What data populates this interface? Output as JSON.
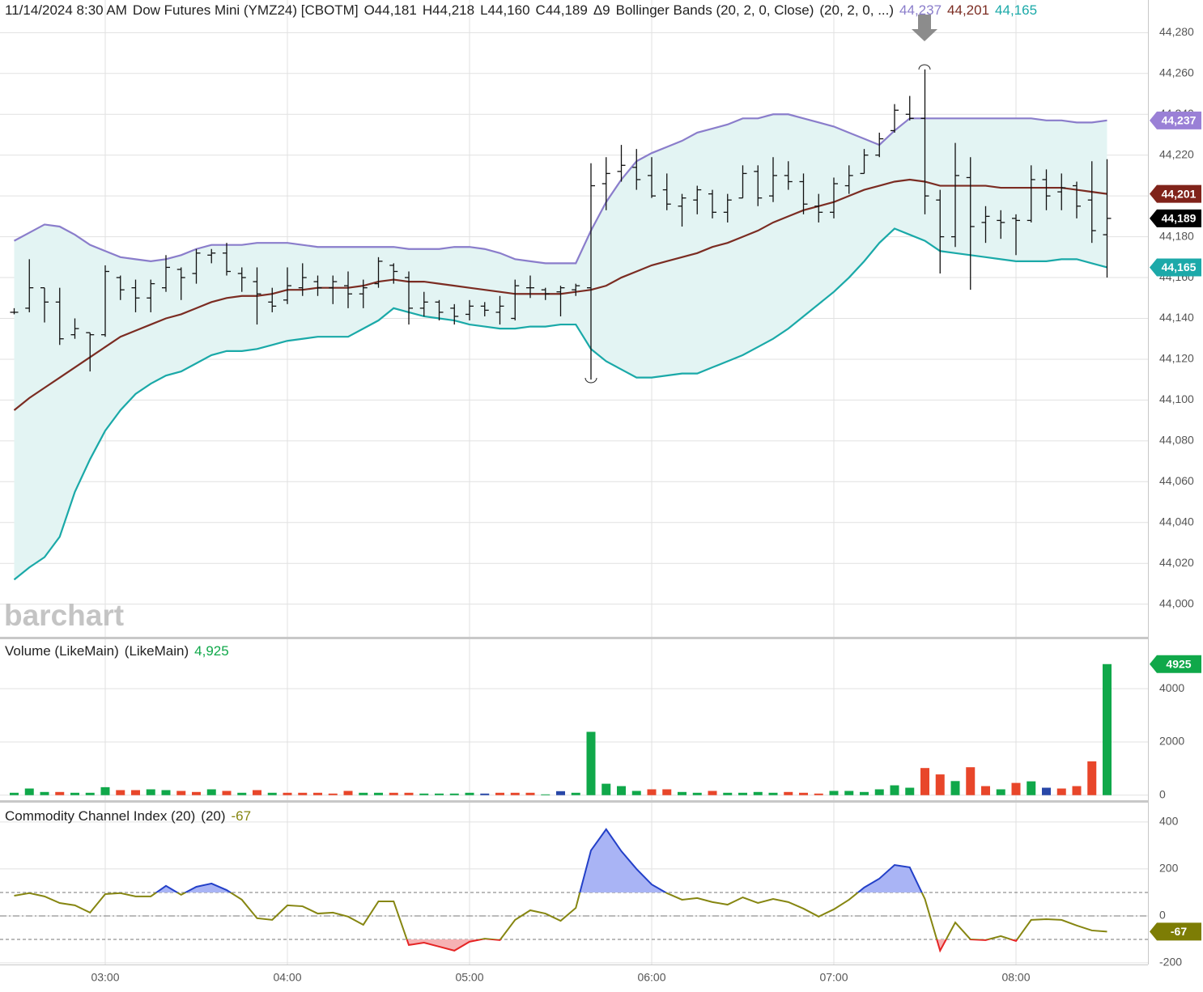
{
  "chart_data": [
    {
      "type": "ohlc",
      "header": {
        "datetime": "11/14/2024 8:30 AM",
        "symbol": "Dow Futures Mini (YMZ24) [CBOTM]",
        "open": "O44,181",
        "high": "H44,218",
        "low": "L44,160",
        "close": "C44,189",
        "change": "Δ9",
        "study": "Bollinger Bands (20, 2, 0, Close)",
        "params": "(20, 2, 0, ...)"
      },
      "watermark": "barchart",
      "categories": [
        null,
        null,
        null,
        null,
        null,
        null,
        "03:00",
        null,
        null,
        null,
        null,
        null,
        null,
        null,
        null,
        null,
        null,
        null,
        "04:00",
        null,
        null,
        null,
        null,
        null,
        null,
        null,
        null,
        null,
        null,
        null,
        "05:00",
        null,
        null,
        null,
        null,
        null,
        null,
        null,
        null,
        null,
        null,
        null,
        "06:00",
        null,
        null,
        null,
        null,
        null,
        null,
        null,
        null,
        null,
        null,
        null,
        "07:00",
        null,
        null,
        null,
        null,
        null,
        null,
        null,
        null,
        null,
        null,
        null,
        "08:00",
        null,
        null,
        null,
        null,
        null,
        null
      ],
      "open": [
        44143,
        44145,
        44155,
        44148,
        44132,
        44133,
        44132,
        44160,
        44155,
        44150,
        44155,
        44164,
        44162,
        44171,
        44172,
        44162,
        44158,
        44148,
        44149,
        44155,
        44158,
        44155,
        44156,
        44152,
        44157,
        44166,
        44160,
        44145,
        44148,
        44145,
        44142,
        44146,
        44143,
        44140,
        44155,
        44154,
        44153,
        44154,
        44155,
        44206,
        44212,
        44214,
        44210,
        44203,
        44195,
        44198,
        44201,
        44192,
        44199,
        44212,
        44200,
        44210,
        44207,
        44195,
        44192,
        44205,
        44211,
        44220,
        44232,
        44240,
        44238,
        44198,
        44180,
        44209,
        44187,
        44188,
        44189,
        44188,
        44208,
        44202,
        44205,
        44198,
        44181
      ],
      "high": [
        44145,
        44169,
        44155,
        44155,
        44140,
        44133,
        44166,
        44161,
        44159,
        44159,
        44171,
        44165,
        44174,
        44174,
        44177,
        44165,
        44165,
        44155,
        44165,
        44167,
        44161,
        44161,
        44163,
        44159,
        44170,
        44167,
        44163,
        44153,
        44149,
        44147,
        44149,
        44148,
        44151,
        44159,
        44161,
        44155,
        44156,
        44157,
        44216,
        44219,
        44225,
        44223,
        44219,
        44211,
        44201,
        44205,
        44203,
        44201,
        44215,
        44215,
        44219,
        44217,
        44211,
        44201,
        44209,
        44215,
        44223,
        44231,
        44245,
        44249,
        44262,
        44203,
        44226,
        44219,
        44195,
        44193,
        44191,
        44215,
        44213,
        44211,
        44207,
        44217,
        44218
      ],
      "low": [
        44142,
        44143,
        44138,
        44127,
        44130,
        44114,
        44131,
        44149,
        44143,
        44143,
        44153,
        44149,
        44157,
        44167,
        44161,
        44153,
        44137,
        44143,
        44147,
        44151,
        44151,
        44147,
        44145,
        44145,
        44155,
        44157,
        44137,
        44141,
        44139,
        44137,
        44139,
        44141,
        44137,
        44139,
        44150,
        44149,
        44141,
        44151,
        44110,
        44193,
        44207,
        44203,
        44199,
        44193,
        44185,
        44191,
        44189,
        44187,
        44199,
        44195,
        44197,
        44203,
        44191,
        44187,
        44189,
        44201,
        44211,
        44219,
        44231,
        44237,
        44191,
        44162,
        44175,
        44154,
        44177,
        44179,
        44171,
        44187,
        44193,
        44193,
        44189,
        44177,
        44160
      ],
      "close": [
        44143,
        44155,
        44148,
        44130,
        44135,
        44132,
        44163,
        44154,
        44150,
        44157,
        44165,
        44160,
        44172,
        44172,
        44163,
        44160,
        44152,
        44146,
        44156,
        44160,
        44155,
        44158,
        44152,
        44155,
        44168,
        44163,
        44145,
        44148,
        44143,
        44141,
        44146,
        44144,
        44146,
        44156,
        44155,
        44152,
        44155,
        44156,
        44205,
        44211,
        44215,
        44208,
        44200,
        44196,
        44199,
        44203,
        44192,
        44198,
        44211,
        44199,
        44210,
        44207,
        44196,
        44192,
        44206,
        44210,
        44220,
        44228,
        44242,
        44238,
        44200,
        44180,
        44210,
        44185,
        44190,
        44187,
        44188,
        44208,
        44200,
        44204,
        44195,
        44183,
        44189
      ],
      "color": "#111111",
      "close_label": "44,189",
      "close_badge_color": "#000000",
      "band_fill": "#e3f4f3",
      "overlays": [
        {
          "label": "44,237",
          "color": "#8a7dcb",
          "badge_color": "#9a80d6",
          "values": [
            44178,
            44182,
            44186,
            44185,
            44181,
            44176,
            44173,
            44170,
            44169,
            44168,
            44169,
            44171,
            44174,
            44176,
            44176,
            44176,
            44177,
            44177,
            44177,
            44176,
            44175,
            44175,
            44175,
            44175,
            44175,
            44175,
            44174,
            44174,
            44174,
            44175,
            44175,
            44174,
            44172,
            44169,
            44168,
            44167,
            44167,
            44167,
            44183,
            44197,
            44208,
            44217,
            44221,
            44224,
            44227,
            44231,
            44233,
            44235,
            44238,
            44238,
            44240,
            44240,
            44238,
            44236,
            44234,
            44231,
            44228,
            44225,
            44232,
            44238,
            44238,
            44238,
            44238,
            44238,
            44238,
            44238,
            44238,
            44238,
            44237,
            44237,
            44236,
            44236,
            44237
          ]
        },
        {
          "label": "44,201",
          "color": "#7b2c22",
          "badge_color": "#80231a",
          "values": [
            44095,
            44101,
            44106,
            44111,
            44116,
            44121,
            44126,
            44131,
            44134,
            44137,
            44140,
            44142,
            44145,
            44148,
            44150,
            44151,
            44151,
            44152,
            44154,
            44154,
            44155,
            44155,
            44155,
            44156,
            44158,
            44159,
            44158,
            44158,
            44157,
            44156,
            44155,
            44154,
            44153,
            44152,
            44152,
            44152,
            44152,
            44153,
            44154,
            44156,
            44160,
            44163,
            44166,
            44168,
            44170,
            44172,
            44175,
            44177,
            44180,
            44183,
            44187,
            44190,
            44193,
            44195,
            44197,
            44200,
            44203,
            44205,
            44207,
            44208,
            44207,
            44205,
            44205,
            44205,
            44205,
            44204,
            44204,
            44204,
            44204,
            44204,
            44203,
            44202,
            44201
          ]
        },
        {
          "label": "44,165",
          "color": "#1aa9a8",
          "badge_color": "#1ca9a9",
          "values": [
            44012,
            44018,
            44023,
            44033,
            44055,
            44071,
            44085,
            44095,
            44103,
            44108,
            44112,
            44114,
            44118,
            44122,
            44124,
            44124,
            44125,
            44127,
            44129,
            44130,
            44131,
            44131,
            44131,
            44135,
            44139,
            44145,
            44143,
            44141,
            44140,
            44139,
            44137,
            44136,
            44135,
            44135,
            44136,
            44136,
            44137,
            44137,
            44125,
            44119,
            44115,
            44111,
            44111,
            44112,
            44113,
            44113,
            44116,
            44119,
            44122,
            44126,
            44130,
            44135,
            44141,
            44147,
            44153,
            44160,
            44168,
            44177,
            44184,
            44181,
            44178,
            44173,
            44172,
            44171,
            44170,
            44169,
            44168,
            44168,
            44168,
            44169,
            44169,
            44167,
            44165
          ]
        }
      ],
      "ylim": [
        43984,
        44296
      ],
      "yticks": [
        {
          "value": 44000,
          "label": "44,000"
        },
        {
          "value": 44020,
          "label": "44,020"
        },
        {
          "value": 44040,
          "label": "44,040"
        },
        {
          "value": 44060,
          "label": "44,060"
        },
        {
          "value": 44080,
          "label": "44,080"
        },
        {
          "value": 44100,
          "label": "44,100"
        },
        {
          "value": 44120,
          "label": "44,120"
        },
        {
          "value": 44140,
          "label": "44,140"
        },
        {
          "value": 44160,
          "label": "44,160"
        },
        {
          "value": 44180,
          "label": "44,180"
        },
        {
          "value": 44200,
          "label": "44,200"
        },
        {
          "value": 44220,
          "label": "44,220"
        },
        {
          "value": 44240,
          "label": "44,240"
        },
        {
          "value": 44260,
          "label": "44,260"
        },
        {
          "value": 44280,
          "label": "44,280"
        }
      ],
      "grid": true
    },
    {
      "type": "bar",
      "title": "Volume (LikeMain)",
      "params": "(LikeMain)",
      "title_value": "4,925",
      "title_value_color": "#10a84a",
      "values": [
        90,
        250,
        120,
        120,
        90,
        90,
        300,
        190,
        190,
        220,
        190,
        160,
        120,
        220,
        160,
        90,
        190,
        90,
        90,
        90,
        90,
        60,
        160,
        90,
        90,
        90,
        90,
        60,
        60,
        60,
        90,
        60,
        90,
        90,
        90,
        30,
        150,
        90,
        2380,
        430,
        340,
        160,
        220,
        220,
        120,
        90,
        160,
        90,
        90,
        120,
        90,
        120,
        90,
        60,
        160,
        160,
        120,
        220,
        370,
        280,
        1020,
        780,
        530,
        1050,
        340,
        220,
        460,
        520,
        280,
        250,
        340,
        1270,
        4925
      ],
      "colors": [
        "#10a84a",
        "#10a84a",
        "#10a84a",
        "#e8462a",
        "#10a84a",
        "#10a84a",
        "#10a84a",
        "#e8462a",
        "#e8462a",
        "#10a84a",
        "#10a84a",
        "#e8462a",
        "#e8462a",
        "#10a84a",
        "#e8462a",
        "#10a84a",
        "#e8462a",
        "#10a84a",
        "#e8462a",
        "#e8462a",
        "#e8462a",
        "#e8462a",
        "#e8462a",
        "#10a84a",
        "#10a84a",
        "#e8462a",
        "#e8462a",
        "#10a84a",
        "#10a84a",
        "#10a84a",
        "#10a84a",
        "#2847a8",
        "#e8462a",
        "#e8462a",
        "#e8462a",
        "#10a84a",
        "#2847a8",
        "#10a84a",
        "#10a84a",
        "#10a84a",
        "#10a84a",
        "#10a84a",
        "#e8462a",
        "#e8462a",
        "#10a84a",
        "#10a84a",
        "#e8462a",
        "#10a84a",
        "#10a84a",
        "#10a84a",
        "#10a84a",
        "#e8462a",
        "#e8462a",
        "#e8462a",
        "#10a84a",
        "#10a84a",
        "#10a84a",
        "#10a84a",
        "#10a84a",
        "#10a84a",
        "#e8462a",
        "#e8462a",
        "#10a84a",
        "#e8462a",
        "#e8462a",
        "#10a84a",
        "#e8462a",
        "#10a84a",
        "#2847a8",
        "#e8462a",
        "#e8462a",
        "#e8462a",
        "#10a84a"
      ],
      "last_label": "4925",
      "badge_color": "#10a84a",
      "ylim": [
        -160,
        5830
      ],
      "yticks": [
        0,
        2000,
        4000
      ],
      "grid": true
    },
    {
      "type": "line",
      "title": "Commodity Channel Index (20)",
      "params": "(20)",
      "values": [
        86,
        97,
        83,
        55,
        45,
        14,
        93,
        97,
        83,
        83,
        128,
        90,
        124,
        138,
        110,
        69,
        -10,
        -17,
        45,
        41,
        10,
        14,
        -3,
        -38,
        62,
        62,
        -124,
        -114,
        -131,
        -148,
        -110,
        -97,
        -103,
        -17,
        24,
        10,
        -21,
        34,
        279,
        369,
        276,
        200,
        134,
        97,
        69,
        76,
        59,
        48,
        79,
        55,
        72,
        59,
        31,
        -3,
        28,
        69,
        121,
        159,
        217,
        207,
        72,
        -148,
        -28,
        -100,
        -103,
        -86,
        -107,
        -17,
        -14,
        -17,
        -41,
        -62,
        -67
      ],
      "color": "#868611",
      "above_color": "#2340c8",
      "below_color": "#e52424",
      "above_fill": "#a9b4f5",
      "below_fill": "#f6b2b4",
      "levels": [
        100,
        0,
        -100
      ],
      "last_label": "-67",
      "badge_color": "#7d7d05",
      "ylim": [
        -207,
        479
      ],
      "yticks": [
        400,
        200,
        0,
        -200
      ],
      "grid": true
    }
  ]
}
